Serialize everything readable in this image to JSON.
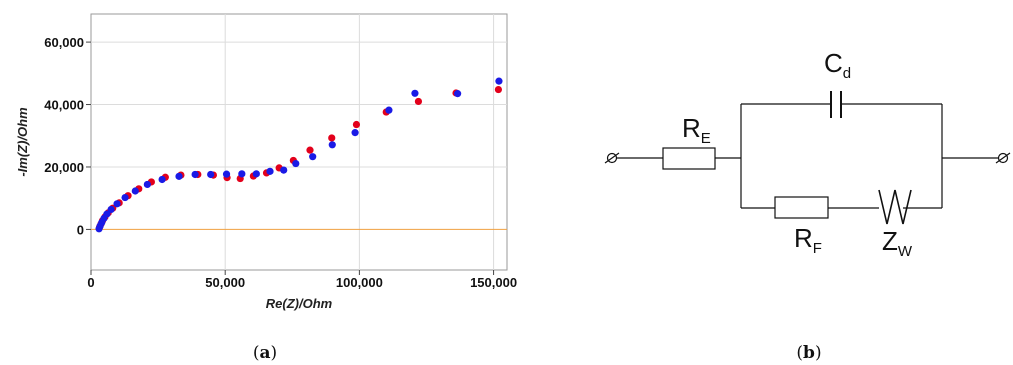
{
  "chart_data": {
    "type": "scatter",
    "title": "",
    "xlabel": "Re(Z)/Ohm",
    "ylabel": "-Im(Z)/Ohm",
    "xlim": [
      0,
      155000
    ],
    "ylim": [
      -13000,
      69000
    ],
    "x_ticks": [
      0,
      50000,
      100000,
      150000
    ],
    "x_tick_labels": [
      "0",
      "50,000",
      "100,000",
      "150,000"
    ],
    "y_ticks": [
      0,
      20000,
      40000,
      60000
    ],
    "y_tick_labels": [
      "0",
      "20,000",
      "40,000",
      "60,000"
    ],
    "grid": true,
    "zero_line_color": "#f0a040",
    "series": [
      {
        "color": "#e3001b",
        "points": [
          [
            3200,
            700
          ],
          [
            3700,
            1700
          ],
          [
            4300,
            2800
          ],
          [
            5200,
            4000
          ],
          [
            6400,
            5300
          ],
          [
            8100,
            6800
          ],
          [
            10500,
            8500
          ],
          [
            13800,
            10800
          ],
          [
            17800,
            13000
          ],
          [
            22500,
            15200
          ],
          [
            27700,
            16700
          ],
          [
            33500,
            17400
          ],
          [
            39800,
            17600
          ],
          [
            45600,
            17400
          ],
          [
            50700,
            16600
          ],
          [
            55600,
            16300
          ],
          [
            60500,
            17100
          ],
          [
            65400,
            18100
          ],
          [
            70100,
            19700
          ],
          [
            75400,
            22100
          ],
          [
            81600,
            25400
          ],
          [
            89700,
            29300
          ],
          [
            98900,
            33600
          ],
          [
            110000,
            37600
          ],
          [
            122000,
            41000
          ],
          [
            136000,
            43700
          ],
          [
            151800,
            44800
          ]
        ]
      },
      {
        "color": "#1a1ae6",
        "points": [
          [
            3000,
            200
          ],
          [
            3400,
            1100
          ],
          [
            4000,
            2200
          ],
          [
            4800,
            3500
          ],
          [
            5900,
            4900
          ],
          [
            7500,
            6400
          ],
          [
            9700,
            8200
          ],
          [
            12700,
            10200
          ],
          [
            16500,
            12300
          ],
          [
            21000,
            14400
          ],
          [
            26500,
            16000
          ],
          [
            32800,
            17000
          ],
          [
            38800,
            17600
          ],
          [
            44600,
            17600
          ],
          [
            50500,
            17700
          ],
          [
            56200,
            17800
          ],
          [
            61600,
            17800
          ],
          [
            66700,
            18600
          ],
          [
            71800,
            19000
          ],
          [
            76300,
            21100
          ],
          [
            82600,
            23300
          ],
          [
            89900,
            27100
          ],
          [
            98400,
            31000
          ],
          [
            111000,
            38200
          ],
          [
            120700,
            43600
          ],
          [
            136600,
            43500
          ],
          [
            152000,
            47500
          ]
        ]
      }
    ]
  },
  "captions": {
    "a_open": "(",
    "a_letter": "a",
    "a_close": ")",
    "b_open": "(",
    "b_letter": "b",
    "b_close": ")"
  },
  "circuit": {
    "re_main": "R",
    "re_sub": "E",
    "cd_main": "C",
    "cd_sub": "d",
    "rf_main": "R",
    "rf_sub": "F",
    "zw_main": "Z",
    "zw_sub": "W"
  }
}
